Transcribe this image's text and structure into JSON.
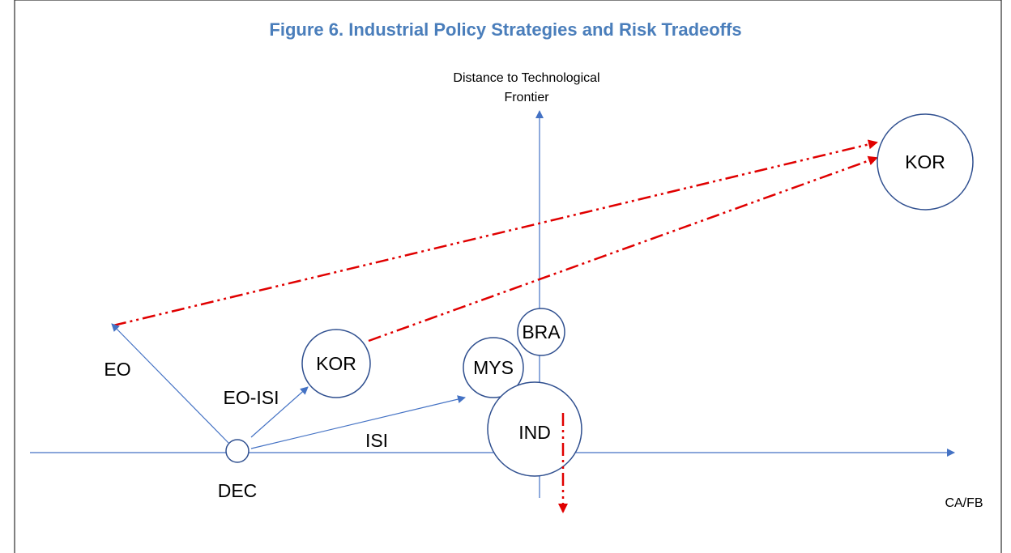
{
  "title": "Figure 6. Industrial Policy Strategies and Risk Tradeoffs",
  "y_axis_label": [
    "Distance to Technological",
    "Frontier"
  ],
  "x_axis_label": "CA/FB",
  "nodes": [
    {
      "label": "DEC"
    },
    {
      "label": "KOR"
    },
    {
      "label": "MYS"
    },
    {
      "label": "BRA"
    },
    {
      "label": "IND"
    },
    {
      "label": "KOR"
    }
  ],
  "arrows": [
    {
      "label": "EO"
    },
    {
      "label": "EO-ISI"
    },
    {
      "label": "ISI"
    }
  ]
}
